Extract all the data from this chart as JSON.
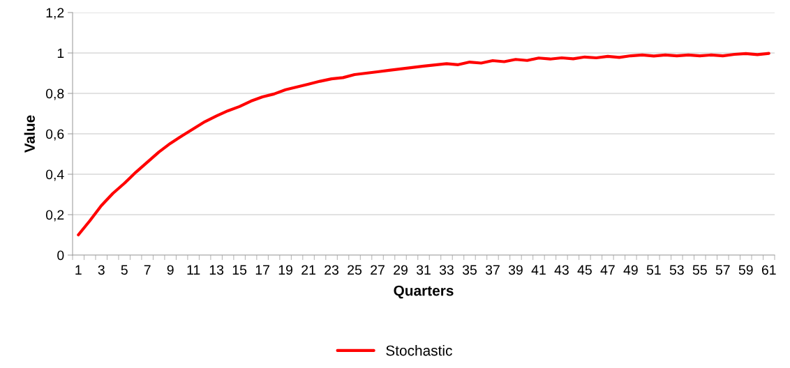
{
  "chart_data": {
    "type": "line",
    "xlabel": "Quarters",
    "ylabel": "Value",
    "categories": [
      "1",
      null,
      "3",
      null,
      "5",
      null,
      "7",
      null,
      "9",
      null,
      "11",
      null,
      "13",
      null,
      "15",
      null,
      "17",
      null,
      "19",
      null,
      "21",
      null,
      "23",
      null,
      "25",
      null,
      "27",
      null,
      "29",
      null,
      "31",
      null,
      "33",
      null,
      "35",
      null,
      "37",
      null,
      "39",
      null,
      "41",
      null,
      "43",
      null,
      "45",
      null,
      "47",
      null,
      "49",
      null,
      "51",
      null,
      "53",
      null,
      "55",
      null,
      "57",
      null,
      "59",
      null,
      "61"
    ],
    "series": [
      {
        "name": "Stochastic",
        "color": "#ff0000",
        "values": [
          0.1,
          0.17,
          0.245,
          0.305,
          0.355,
          0.41,
          0.46,
          0.51,
          0.553,
          0.59,
          0.625,
          0.66,
          0.688,
          0.714,
          0.735,
          0.762,
          0.783,
          0.797,
          0.818,
          0.832,
          0.846,
          0.86,
          0.872,
          0.878,
          0.893,
          0.9,
          0.907,
          0.914,
          0.921,
          0.928,
          0.935,
          0.941,
          0.947,
          0.942,
          0.955,
          0.95,
          0.962,
          0.957,
          0.968,
          0.963,
          0.975,
          0.97,
          0.976,
          0.971,
          0.98,
          0.976,
          0.983,
          0.978,
          0.986,
          0.99,
          0.985,
          0.99,
          0.986,
          0.99,
          0.986,
          0.99,
          0.986,
          0.993,
          0.997,
          0.992,
          0.998
        ]
      }
    ],
    "ylim": [
      0,
      1.2
    ],
    "yticks": [
      {
        "value": 0,
        "label": "0"
      },
      {
        "value": 0.2,
        "label": "0,2"
      },
      {
        "value": 0.4,
        "label": "0,4"
      },
      {
        "value": 0.6,
        "label": "0,6"
      },
      {
        "value": 0.8,
        "label": "0,8"
      },
      {
        "value": 1,
        "label": "1"
      },
      {
        "value": 1.2,
        "label": "1,2"
      }
    ],
    "grid": "y",
    "legend": "bottom",
    "marker": "none",
    "line_style": "solid"
  }
}
